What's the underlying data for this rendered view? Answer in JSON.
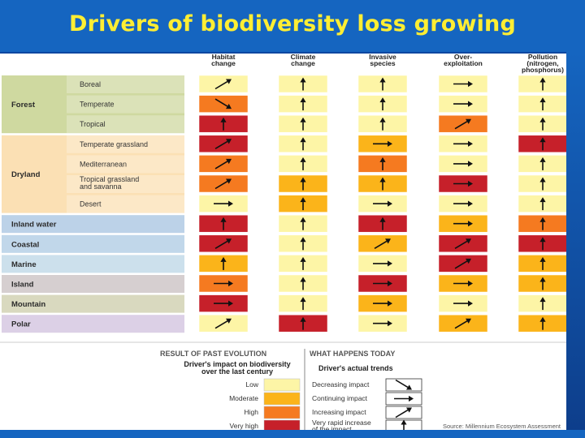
{
  "title": "Drivers of biodiversity loss growing",
  "colors": {
    "low": "#fdf5a6",
    "moderate": "#fbb41a",
    "high": "#f57a20",
    "very_high": "#c6202a",
    "band_forest": "#cfd9a0",
    "band_dryland": "#fbe0b4",
    "band_inland": "#bcd2e8",
    "band_coastal": "#c1d7ea",
    "band_marine": "#cce0ec",
    "band_island": "#d6cfd0",
    "band_mountain": "#d9d9bf",
    "band_polar": "#dcd0e6"
  },
  "chart_data": {
    "type": "table",
    "columns": [
      "Habitat change",
      "Climate change",
      "Invasive species",
      "Over-exploitation",
      "Pollution (nitrogen, phosphorus)"
    ],
    "column_lines": [
      [
        "Habitat",
        "change"
      ],
      [
        "Climate",
        "change"
      ],
      [
        "Invasive",
        "species"
      ],
      [
        "Over-",
        "exploitation"
      ],
      [
        "Pollution",
        "(nitrogen,",
        "phosphorus)"
      ]
    ],
    "groups": [
      {
        "label": "Forest",
        "band": "band_forest",
        "rows": [
          0,
          1,
          2
        ]
      },
      {
        "label": "Dryland",
        "band": "band_dryland",
        "rows": [
          3,
          4,
          5,
          6
        ]
      },
      {
        "label": "Inland water",
        "band": "band_inland",
        "rows": [
          7
        ]
      },
      {
        "label": "Coastal",
        "band": "band_coastal",
        "rows": [
          8
        ]
      },
      {
        "label": "Marine",
        "band": "band_marine",
        "rows": [
          9
        ]
      },
      {
        "label": "Island",
        "band": "band_island",
        "rows": [
          10
        ]
      },
      {
        "label": "Mountain",
        "band": "band_mountain",
        "rows": [
          11
        ]
      },
      {
        "label": "Polar",
        "band": "band_polar",
        "rows": [
          12
        ]
      }
    ],
    "rows": [
      {
        "group": "Forest",
        "sub": [
          "Boreal"
        ],
        "impact": [
          "low",
          "low",
          "low",
          "low",
          "low"
        ],
        "trend": [
          "increasing",
          "very_rapid",
          "very_rapid",
          "continuing",
          "very_rapid"
        ]
      },
      {
        "group": "Forest",
        "sub": [
          "Temperate"
        ],
        "impact": [
          "high",
          "low",
          "low",
          "low",
          "low"
        ],
        "trend": [
          "decreasing",
          "very_rapid",
          "very_rapid",
          "continuing",
          "very_rapid"
        ]
      },
      {
        "group": "Forest",
        "sub": [
          "Tropical"
        ],
        "impact": [
          "very_high",
          "low",
          "low",
          "high",
          "low"
        ],
        "trend": [
          "very_rapid",
          "very_rapid",
          "very_rapid",
          "increasing",
          "very_rapid"
        ]
      },
      {
        "group": "Dryland",
        "sub": [
          "Temperate grassland"
        ],
        "impact": [
          "very_high",
          "low",
          "moderate",
          "low",
          "very_high"
        ],
        "trend": [
          "increasing",
          "very_rapid",
          "continuing",
          "continuing",
          "very_rapid"
        ]
      },
      {
        "group": "Dryland",
        "sub": [
          "Mediterranean"
        ],
        "impact": [
          "high",
          "low",
          "high",
          "low",
          "low"
        ],
        "trend": [
          "increasing",
          "very_rapid",
          "very_rapid",
          "continuing",
          "very_rapid"
        ]
      },
      {
        "group": "Dryland",
        "sub": [
          "Tropical grassland",
          "and savanna"
        ],
        "impact": [
          "high",
          "moderate",
          "moderate",
          "very_high",
          "low"
        ],
        "trend": [
          "increasing",
          "very_rapid",
          "very_rapid",
          "continuing",
          "very_rapid"
        ]
      },
      {
        "group": "Dryland",
        "sub": [
          "Desert"
        ],
        "impact": [
          "low",
          "moderate",
          "low",
          "low",
          "low"
        ],
        "trend": [
          "continuing",
          "very_rapid",
          "continuing",
          "continuing",
          "very_rapid"
        ]
      },
      {
        "group": "Inland water",
        "sub": [],
        "impact": [
          "very_high",
          "low",
          "very_high",
          "moderate",
          "high"
        ],
        "trend": [
          "very_rapid",
          "very_rapid",
          "very_rapid",
          "continuing",
          "very_rapid"
        ]
      },
      {
        "group": "Coastal",
        "sub": [],
        "impact": [
          "very_high",
          "low",
          "moderate",
          "very_high",
          "very_high"
        ],
        "trend": [
          "increasing",
          "very_rapid",
          "increasing",
          "increasing",
          "very_rapid"
        ]
      },
      {
        "group": "Marine",
        "sub": [],
        "impact": [
          "moderate",
          "low",
          "low",
          "very_high",
          "moderate"
        ],
        "trend": [
          "very_rapid",
          "very_rapid",
          "continuing",
          "increasing",
          "very_rapid"
        ]
      },
      {
        "group": "Island",
        "sub": [],
        "impact": [
          "high",
          "low",
          "very_high",
          "moderate",
          "moderate"
        ],
        "trend": [
          "continuing",
          "very_rapid",
          "continuing",
          "continuing",
          "very_rapid"
        ]
      },
      {
        "group": "Mountain",
        "sub": [],
        "impact": [
          "very_high",
          "low",
          "moderate",
          "low",
          "low"
        ],
        "trend": [
          "continuing",
          "very_rapid",
          "continuing",
          "continuing",
          "very_rapid"
        ]
      },
      {
        "group": "Polar",
        "sub": [],
        "impact": [
          "low",
          "very_high",
          "low",
          "moderate",
          "moderate"
        ],
        "trend": [
          "increasing",
          "very_rapid",
          "continuing",
          "increasing",
          "very_rapid"
        ]
      }
    ],
    "legend": {
      "left_title": "RESULT OF PAST EVOLUTION",
      "right_title": "WHAT HAPPENS TODAY",
      "left_subtitle": [
        "Driver's impact on biodiversity",
        "over the last century"
      ],
      "right_subtitle": "Driver's actual trends",
      "impacts": [
        {
          "key": "low",
          "label": "Low"
        },
        {
          "key": "moderate",
          "label": "Moderate"
        },
        {
          "key": "high",
          "label": "High"
        },
        {
          "key": "very_high",
          "label": "Very high"
        }
      ],
      "trends": [
        {
          "key": "decreasing",
          "label": [
            "Decreasing impact"
          ]
        },
        {
          "key": "continuing",
          "label": [
            "Continuing impact"
          ]
        },
        {
          "key": "increasing",
          "label": [
            "Increasing impact"
          ]
        },
        {
          "key": "very_rapid",
          "label": [
            "Very rapid increase",
            "of the impact"
          ]
        }
      ]
    },
    "source": "Source: Millennium Ecosystem Assessment"
  }
}
